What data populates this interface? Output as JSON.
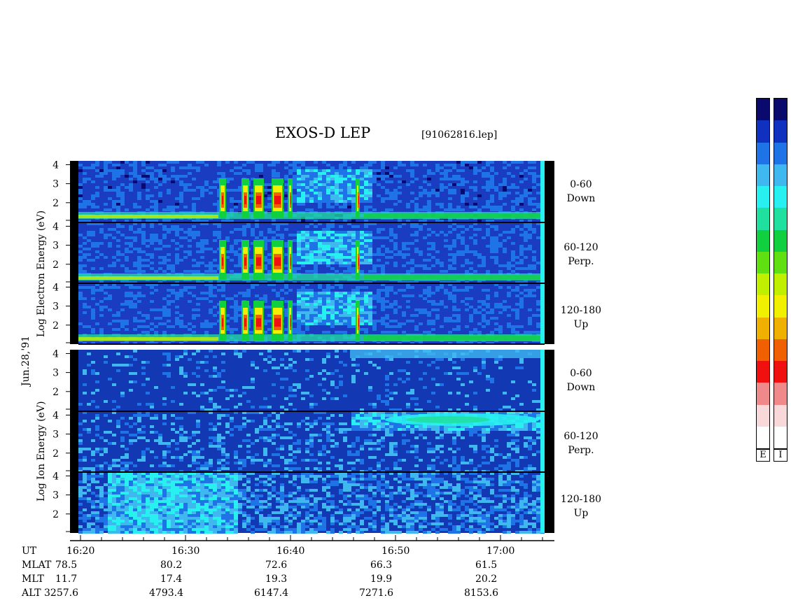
{
  "header": {
    "title": "EXOS-D LEP",
    "filename": "[91062816.lep]"
  },
  "side_labels": {
    "electron_axis": "Log  Electron  Energy (eV)",
    "ion_axis": "Log  Ion  Energy (eV)",
    "date": "Jun.28,'91"
  },
  "panel_labels": [
    {
      "range": "0-60",
      "dir": "Down"
    },
    {
      "range": "60-120",
      "dir": "Perp."
    },
    {
      "range": "120-180",
      "dir": "Up"
    },
    {
      "range": "0-60",
      "dir": "Down"
    },
    {
      "range": "60-120",
      "dir": "Perp."
    },
    {
      "range": "120-180",
      "dir": "Up"
    }
  ],
  "colorbar": {
    "labels": [
      "E",
      "I"
    ],
    "colors": [
      "#0a0a6e",
      "#1030c0",
      "#1e73e6",
      "#3fb8f0",
      "#28f0f0",
      "#20e0a0",
      "#10d040",
      "#60e010",
      "#c0f000",
      "#f0f000",
      "#f0b000",
      "#f06000",
      "#f01010",
      "#f08a8a",
      "#f8d8d8",
      "#ffffff"
    ]
  },
  "ephemeris": {
    "row_labels": [
      "UT",
      "MLAT",
      "MLT",
      "ALT"
    ],
    "columns": [
      {
        "UT": "16:20",
        "MLAT": "78.5",
        "MLT": "11.7",
        "ALT": "3257.6"
      },
      {
        "UT": "16:30",
        "MLAT": "80.2",
        "MLT": "17.4",
        "ALT": "4793.4"
      },
      {
        "UT": "16:40",
        "MLAT": "72.6",
        "MLT": "19.3",
        "ALT": "6147.4"
      },
      {
        "UT": "16:50",
        "MLAT": "66.3",
        "MLT": "19.9",
        "ALT": "7271.6"
      },
      {
        "UT": "17:00",
        "MLAT": "61.5",
        "MLT": "20.2",
        "ALT": "8153.6"
      }
    ]
  },
  "chart_data": {
    "type": "heatmap",
    "title": "EXOS-D LEP",
    "xlabel": "UT",
    "x_ticks": [
      "16:20",
      "16:30",
      "16:40",
      "16:50",
      "17:00"
    ],
    "xlim": [
      "16:20",
      "17:24"
    ],
    "ylim": [
      1,
      4.2
    ],
    "y_ticks": [
      2,
      3,
      4
    ],
    "panels": [
      {
        "species": "Electron",
        "pitch_angle": "0-60",
        "direction": "Down"
      },
      {
        "species": "Electron",
        "pitch_angle": "60-120",
        "direction": "Perp."
      },
      {
        "species": "Electron",
        "pitch_angle": "120-180",
        "direction": "Up"
      },
      {
        "species": "Ion",
        "pitch_angle": "0-60",
        "direction": "Down"
      },
      {
        "species": "Ion",
        "pitch_angle": "60-120",
        "direction": "Perp."
      },
      {
        "species": "Ion",
        "pitch_angle": "120-180",
        "direction": "Up"
      }
    ]
  }
}
